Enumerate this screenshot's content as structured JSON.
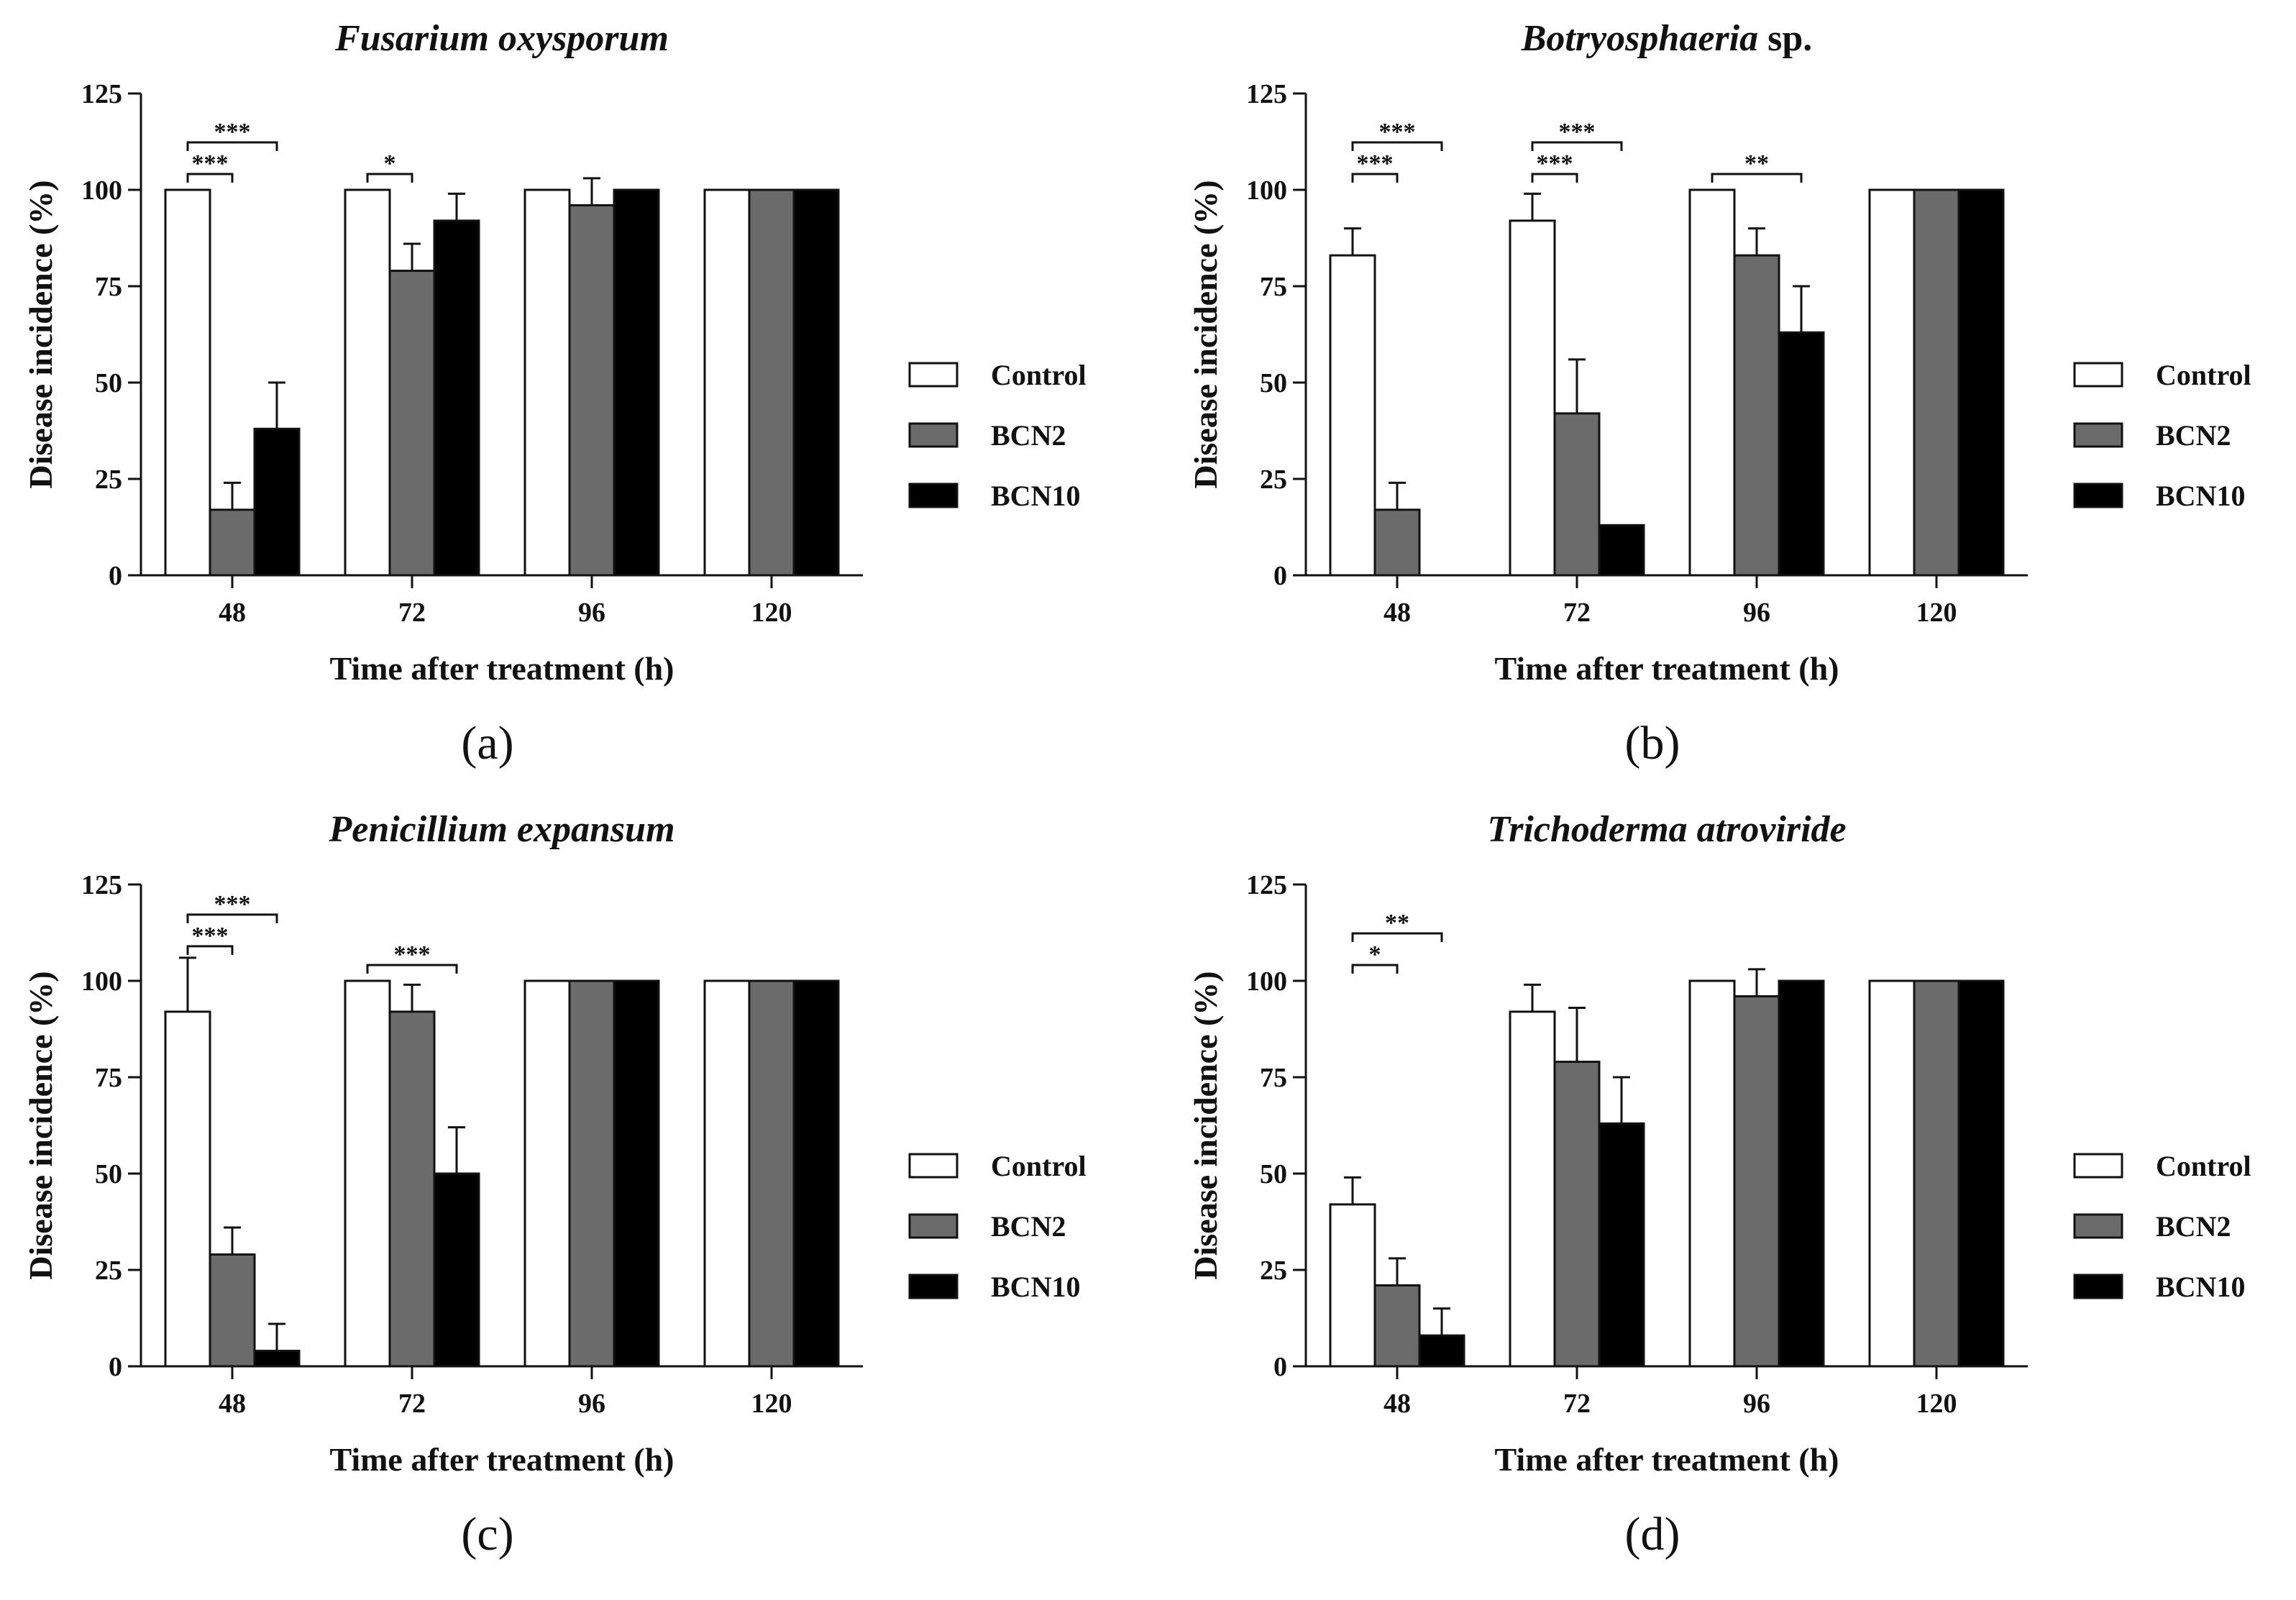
{
  "colors": {
    "Control": "#ffffff",
    "BCN2": "#6b6b6b",
    "BCN10": "#000000",
    "stroke": "#111111"
  },
  "chart_data": [
    {
      "type": "bar",
      "panel_label": "(a)",
      "title": "Fusarium oxysporum",
      "title_suffix": "",
      "xlabel": "Time  after treatment (h)",
      "ylabel": "Disease incidence (%)",
      "ylim": [
        0,
        125
      ],
      "yticks": [
        "0",
        "25",
        "50",
        "75",
        "100",
        "125"
      ],
      "categories": [
        "48",
        "72",
        "96",
        "120"
      ],
      "series": [
        {
          "name": "Control",
          "values": [
            100,
            100,
            100,
            100
          ],
          "errors": [
            0,
            0,
            0,
            0
          ]
        },
        {
          "name": "BCN2",
          "values": [
            17,
            79,
            96,
            100
          ],
          "errors": [
            7,
            7,
            7,
            0
          ]
        },
        {
          "name": "BCN10",
          "values": [
            38,
            92,
            100,
            100
          ],
          "errors": [
            12,
            7,
            0,
            0
          ]
        }
      ],
      "significance": [
        {
          "category": 0,
          "from": 0,
          "to": 1,
          "label": "***"
        },
        {
          "category": 0,
          "from": 0,
          "to": 2,
          "label": "***"
        },
        {
          "category": 1,
          "from": 0,
          "to": 1,
          "label": "*"
        }
      ]
    },
    {
      "type": "bar",
      "panel_label": "(b)",
      "title": "Botryosphaeria",
      "title_suffix": " sp.",
      "xlabel": "Time  after treatment (h)",
      "ylabel": "Disease incidence (%)",
      "ylim": [
        0,
        125
      ],
      "yticks": [
        "0",
        "25",
        "50",
        "75",
        "100",
        "125"
      ],
      "categories": [
        "48",
        "72",
        "96",
        "120"
      ],
      "series": [
        {
          "name": "Control",
          "values": [
            83,
            92,
            100,
            100
          ],
          "errors": [
            7,
            7,
            0,
            0
          ]
        },
        {
          "name": "BCN2",
          "values": [
            17,
            42,
            83,
            100
          ],
          "errors": [
            7,
            14,
            7,
            0
          ]
        },
        {
          "name": "BCN10",
          "values": [
            0,
            13,
            63,
            100
          ],
          "errors": [
            0,
            0,
            12,
            0
          ]
        }
      ],
      "significance": [
        {
          "category": 0,
          "from": 0,
          "to": 1,
          "label": "***"
        },
        {
          "category": 0,
          "from": 0,
          "to": 2,
          "label": "***"
        },
        {
          "category": 1,
          "from": 0,
          "to": 1,
          "label": "***"
        },
        {
          "category": 1,
          "from": 0,
          "to": 2,
          "label": "***"
        },
        {
          "category": 2,
          "from": 0,
          "to": 2,
          "label": "**"
        }
      ]
    },
    {
      "type": "bar",
      "panel_label": "(c)",
      "title": "Penicillium expansum",
      "title_suffix": "",
      "xlabel": "Time  after treatment (h)",
      "ylabel": "Disease incidence (%)",
      "ylim": [
        0,
        125
      ],
      "yticks": [
        "0",
        "25",
        "50",
        "75",
        "100",
        "125"
      ],
      "categories": [
        "48",
        "72",
        "96",
        "120"
      ],
      "series": [
        {
          "name": "Control",
          "values": [
            92,
            100,
            100,
            100
          ],
          "errors": [
            14,
            0,
            0,
            0
          ]
        },
        {
          "name": "BCN2",
          "values": [
            29,
            92,
            100,
            100
          ],
          "errors": [
            7,
            7,
            0,
            0
          ]
        },
        {
          "name": "BCN10",
          "values": [
            4,
            50,
            100,
            100
          ],
          "errors": [
            7,
            12,
            0,
            0
          ]
        }
      ],
      "significance": [
        {
          "category": 0,
          "from": 0,
          "to": 1,
          "label": "***"
        },
        {
          "category": 0,
          "from": 0,
          "to": 2,
          "label": "***"
        },
        {
          "category": 1,
          "from": 0,
          "to": 2,
          "label": "***"
        }
      ]
    },
    {
      "type": "bar",
      "panel_label": "(d)",
      "title": "Trichoderma atroviride",
      "title_suffix": "",
      "xlabel": "Time  after treatment (h)",
      "ylabel": "Disease incidence (%)",
      "ylim": [
        0,
        125
      ],
      "yticks": [
        "0",
        "25",
        "50",
        "75",
        "100",
        "125"
      ],
      "categories": [
        "48",
        "72",
        "96",
        "120"
      ],
      "series": [
        {
          "name": "Control",
          "values": [
            42,
            92,
            100,
            100
          ],
          "errors": [
            7,
            7,
            0,
            0
          ]
        },
        {
          "name": "BCN2",
          "values": [
            21,
            79,
            96,
            100
          ],
          "errors": [
            7,
            14,
            7,
            0
          ]
        },
        {
          "name": "BCN10",
          "values": [
            8,
            63,
            100,
            100
          ],
          "errors": [
            7,
            12,
            0,
            0
          ]
        }
      ],
      "significance": [
        {
          "category": 0,
          "from": 0,
          "to": 1,
          "label": "*"
        },
        {
          "category": 0,
          "from": 0,
          "to": 2,
          "label": "**"
        }
      ]
    }
  ]
}
